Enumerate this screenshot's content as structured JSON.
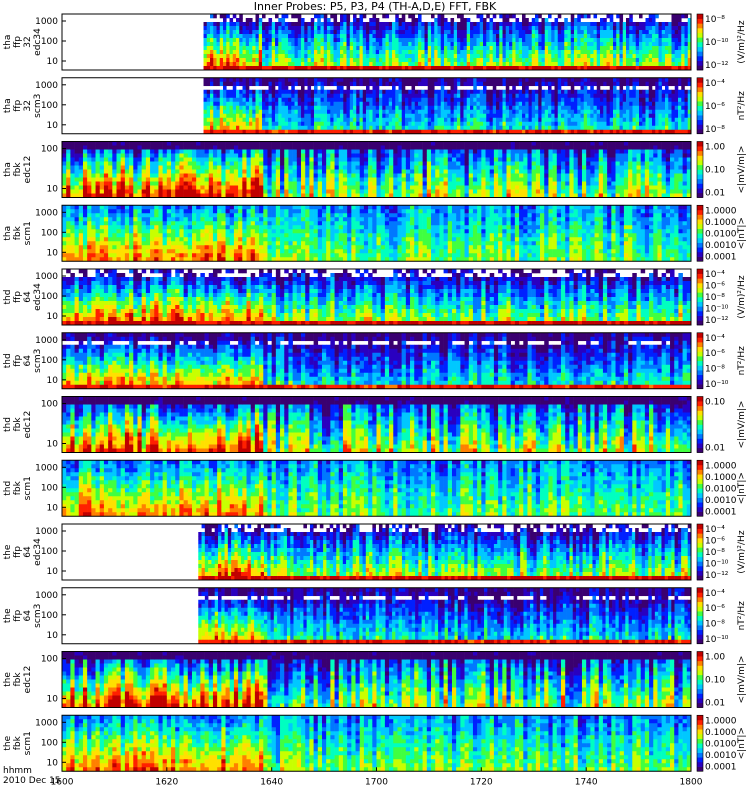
{
  "title": "Inner Probes: P5, P3, P4 (TH-A,D,E) FFT, FBK",
  "footer": {
    "time_label": "hhmm",
    "date_label": "2010 Dec 15"
  },
  "chart_data": {
    "type": "heatmap",
    "x_axis": {
      "range": [
        "16:00",
        "18:00"
      ],
      "ticks": [
        "1600",
        "1620",
        "1640",
        "1700",
        "1720",
        "1740",
        "1800"
      ]
    },
    "colormap": [
      "#3a0070",
      "#2a00c0",
      "#0020ff",
      "#0078ff",
      "#00c8ff",
      "#00ffc0",
      "#40ff40",
      "#c8ff00",
      "#ffe000",
      "#ff8000",
      "#ff2000",
      "#c00000"
    ],
    "panels": [
      {
        "id": "tha-ffp-edc34",
        "labels": [
          "tha",
          "ffp",
          "32",
          "edc34"
        ],
        "yscale": "log",
        "yticks": [
          "1000",
          "100",
          "10"
        ],
        "zscale": "log",
        "zunit": "(V/m)²/Hz",
        "zticks": [
          "10⁻⁸",
          "10⁻¹⁰",
          "10⁻¹²"
        ],
        "data_start": "16:27",
        "kind": "ffp_e",
        "seed": 11
      },
      {
        "id": "tha-ffp-scm3",
        "labels": [
          "tha",
          "ffp",
          "32",
          "scm3"
        ],
        "yscale": "log",
        "yticks": [
          "1000",
          "100",
          "10"
        ],
        "zscale": "log",
        "zunit": "nT²/Hz",
        "zticks": [
          "10⁻⁴",
          "10⁻⁶",
          "10⁻⁸"
        ],
        "data_start": "16:27",
        "kind": "ffp_b",
        "seed": 23
      },
      {
        "id": "tha-fbk-edc12",
        "labels": [
          "tha",
          "fbk",
          "edc12"
        ],
        "yscale": "log",
        "yticks": [
          "100",
          "10"
        ],
        "zscale": "log",
        "zunit": "<|mV/m|>",
        "zticks": [
          "1.00",
          "0.10",
          "0.01"
        ],
        "data_start": "16:00",
        "kind": "fbk_e",
        "seed": 37
      },
      {
        "id": "tha-fbk-scm1",
        "labels": [
          "tha",
          "fbk",
          "scm1"
        ],
        "yscale": "log",
        "yticks": [
          "1000",
          "100",
          "10"
        ],
        "zscale": "log",
        "zunit": "<|nT|>",
        "zticks": [
          "1.0000",
          "0.1000",
          "0.0100",
          "0.0010",
          "0.0001"
        ],
        "data_start": "16:00",
        "kind": "fbk_b",
        "seed": 41
      },
      {
        "id": "thd-ffp-edc34",
        "labels": [
          "thd",
          "ffp",
          "64",
          "edc34"
        ],
        "yscale": "log",
        "yticks": [
          "1000",
          "100",
          "10"
        ],
        "zscale": "log",
        "zunit": "(V/m)²/Hz",
        "zticks": [
          "10⁻⁴",
          "10⁻⁶",
          "10⁻⁸",
          "10⁻¹⁰",
          "10⁻¹²"
        ],
        "data_start": "16:00",
        "kind": "ffp_e",
        "seed": 53
      },
      {
        "id": "thd-ffp-scm3",
        "labels": [
          "thd",
          "ffp",
          "64",
          "scm3"
        ],
        "yscale": "log",
        "yticks": [
          "1000",
          "100",
          "10"
        ],
        "zscale": "log",
        "zunit": "nT²/Hz",
        "zticks": [
          "10⁻⁴",
          "10⁻⁶",
          "10⁻⁸",
          "10⁻¹⁰"
        ],
        "data_start": "16:00",
        "kind": "ffp_b",
        "seed": 67
      },
      {
        "id": "thd-fbk-edc12",
        "labels": [
          "thd",
          "fbk",
          "edc12"
        ],
        "yscale": "log",
        "yticks": [
          "100",
          "10"
        ],
        "zscale": "log",
        "zunit": "<|mV/m|>",
        "zticks": [
          "0.10",
          "0.01"
        ],
        "data_start": "16:00",
        "kind": "fbk_e",
        "seed": 79
      },
      {
        "id": "thd-fbk-scm1",
        "labels": [
          "thd",
          "fbk",
          "scm1"
        ],
        "yscale": "log",
        "yticks": [
          "1000",
          "100",
          "10"
        ],
        "zscale": "log",
        "zunit": "<|nT|>",
        "zticks": [
          "1.0000",
          "0.1000",
          "0.0100",
          "0.0010",
          "0.0001"
        ],
        "data_start": "16:00",
        "kind": "fbk_b",
        "seed": 83
      },
      {
        "id": "the-ffp-edc34",
        "labels": [
          "the",
          "ffp",
          "64",
          "edc34"
        ],
        "yscale": "log",
        "yticks": [
          "1000",
          "100",
          "10"
        ],
        "zscale": "log",
        "zunit": "(V/m)²/Hz",
        "zticks": [
          "10⁻⁴",
          "10⁻⁶",
          "10⁻⁸",
          "10⁻¹⁰",
          "10⁻¹²"
        ],
        "data_start": "16:26",
        "kind": "ffp_e",
        "seed": 97
      },
      {
        "id": "the-ffp-scm3",
        "labels": [
          "the",
          "ffp",
          "64",
          "scm3"
        ],
        "yscale": "log",
        "yticks": [
          "1000",
          "100",
          "10"
        ],
        "zscale": "log",
        "zunit": "nT²/Hz",
        "zticks": [
          "10⁻⁴",
          "10⁻⁶",
          "10⁻⁸",
          "10⁻¹⁰"
        ],
        "data_start": "16:26",
        "kind": "ffp_b",
        "seed": 101
      },
      {
        "id": "the-fbk-edc12",
        "labels": [
          "the",
          "fbk",
          "edc12"
        ],
        "yscale": "log",
        "yticks": [
          "100",
          "10"
        ],
        "zscale": "log",
        "zunit": "<|mV/m|>",
        "zticks": [
          "1.00",
          "0.10",
          "0.01"
        ],
        "data_start": "16:00",
        "kind": "fbk_e",
        "seed": 113
      },
      {
        "id": "the-fbk-scm1",
        "labels": [
          "the",
          "fbk",
          "scm1"
        ],
        "yscale": "log",
        "yticks": [
          "1000",
          "100",
          "10"
        ],
        "zscale": "log",
        "zunit": "<|nT|>",
        "zticks": [
          "1.0000",
          "0.1000",
          "0.0100",
          "0.0010",
          "0.0001"
        ],
        "data_start": "16:00",
        "kind": "fbk_b",
        "seed": 127
      }
    ]
  }
}
